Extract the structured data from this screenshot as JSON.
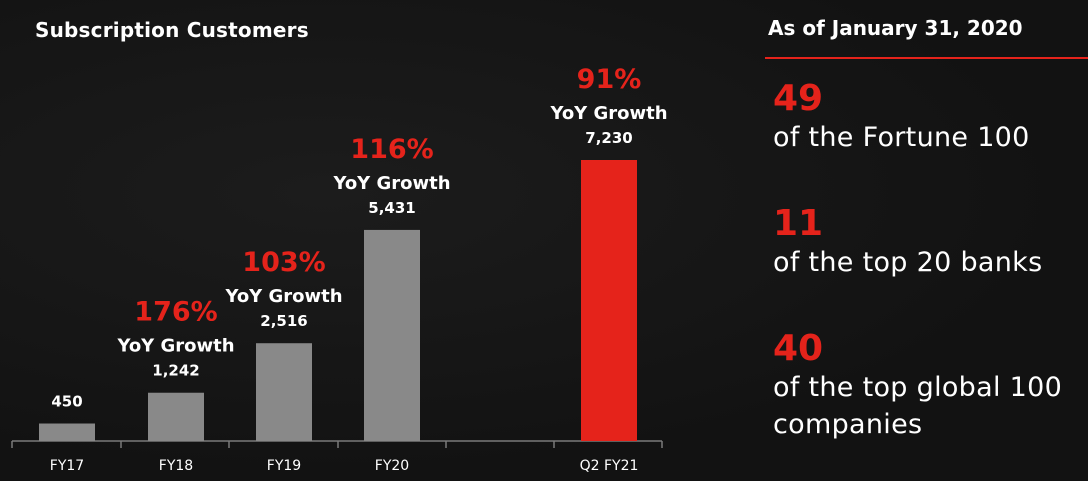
{
  "chart_data": {
    "type": "bar",
    "title": "Subscription Customers",
    "categories": [
      "FY17",
      "FY18",
      "FY19",
      "FY20",
      "Q2 FY21"
    ],
    "values": [
      450,
      1242,
      2516,
      5431,
      7230
    ],
    "value_labels": [
      "450",
      "1,242",
      "2,516",
      "5,431",
      "7,230"
    ],
    "growth": [
      null,
      {
        "pct": "176%",
        "label": "YoY Growth"
      },
      {
        "pct": "103%",
        "label": "YoY Growth"
      },
      {
        "pct": "116%",
        "label": "YoY Growth"
      },
      {
        "pct": "91%",
        "label": "YoY Growth"
      }
    ],
    "ylim": [
      0,
      7230
    ],
    "grid": false,
    "colors": {
      "bar": "#898989",
      "highlight_bar": "#e5231b",
      "growth_pct": "#e5231b",
      "axis": "#7a7a7a"
    },
    "highlight_index": 4
  },
  "stats": {
    "heading": "As of January 31, 2020",
    "items": [
      {
        "number": "49",
        "desc_lines": [
          "of the Fortune 100"
        ]
      },
      {
        "number": "11",
        "desc_lines": [
          "of the top 20 banks"
        ]
      },
      {
        "number": "40",
        "desc_lines": [
          "of the top global 100",
          "companies"
        ]
      }
    ]
  }
}
